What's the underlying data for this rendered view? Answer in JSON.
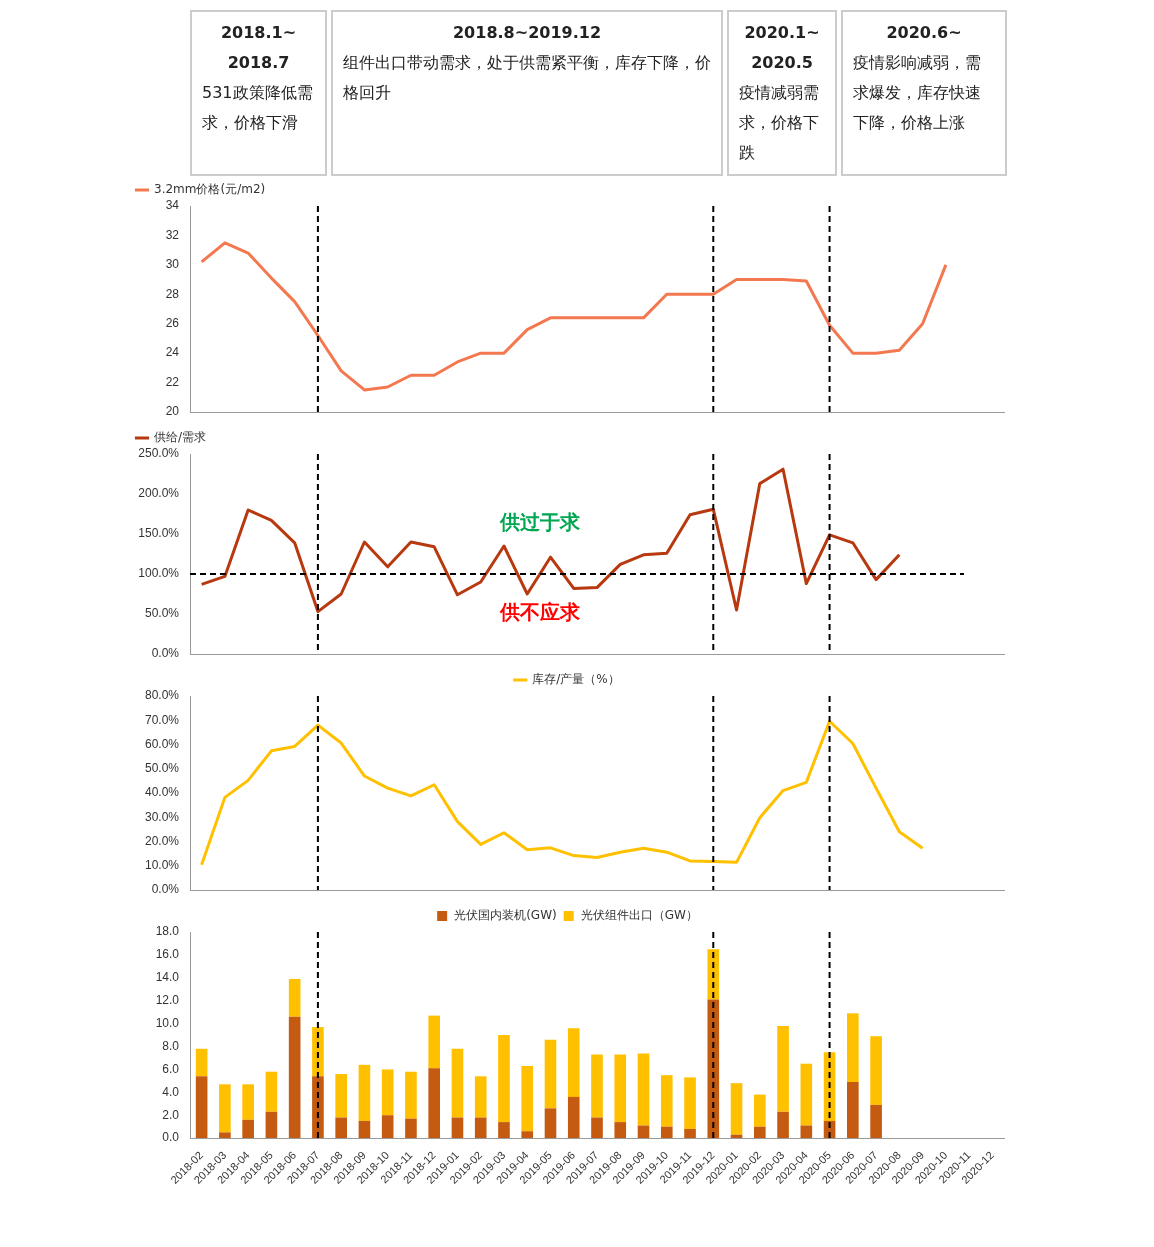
{
  "chart_data": [
    {
      "type": "other",
      "annotations": [
        "2018.1~2018.7",
        "531政策降低需求，价格下滑",
        "2018.8~2019.12",
        "组件出口带动需求，处于供需紧平衡，库存下降，价格回升",
        "2020.1~2020.5",
        "疫情减弱需求，价格下跌",
        "2020.6~",
        "疫情影响减弱，需求爆发，库存快速下降，价格上涨"
      ]
    },
    {
      "type": "line",
      "categories": [
        "2018-02",
        "2018-03",
        "2018-04",
        "2018-05",
        "2018-06",
        "2018-07",
        "2018-08",
        "2018-09",
        "2018-10",
        "2018-11",
        "2018-12",
        "2019-01",
        "2019-02",
        "2019-03",
        "2019-04",
        "2019-05",
        "2019-06",
        "2019-07",
        "2019-08",
        "2019-09",
        "2019-10",
        "2019-11",
        "2019-12",
        "2020-01",
        "2020-02",
        "2020-03",
        "2020-04",
        "2020-05",
        "2020-06",
        "2020-07",
        "2020-08",
        "2020-09",
        "2020-10",
        "2020-11",
        "2020-12"
      ],
      "series": [
        {
          "name": "3.2mm价格(元/m2)",
          "color": "#f4784f",
          "values": [
            30.2,
            31.5,
            30.8,
            29.1,
            27.5,
            25.2,
            22.8,
            21.5,
            21.7,
            22.5,
            22.5,
            23.4,
            24.0,
            24.0,
            25.6,
            26.4,
            26.4,
            26.4,
            26.4,
            26.4,
            28.0,
            28.0,
            28.0,
            29.0,
            29.0,
            29.0,
            28.9,
            25.9,
            24.0,
            24.0,
            24.2,
            26.0,
            30.0,
            null,
            null
          ]
        }
      ],
      "ylim": [
        20,
        34
      ],
      "yticks": [
        20,
        22,
        24,
        26,
        28,
        30,
        32,
        34
      ],
      "tick_labels": "y",
      "legend": "top left",
      "marker": "none",
      "line_style": "solid",
      "ref_lines": [
        {
          "axis": "x",
          "value": "2018-07",
          "line_style": "dashed",
          "color": "#000000"
        },
        {
          "axis": "x",
          "value": "2019-12",
          "line_style": "dashed",
          "color": "#000000"
        },
        {
          "axis": "x",
          "value": "2020-05",
          "line_style": "dashed",
          "color": "#000000"
        }
      ]
    },
    {
      "type": "line",
      "categories": [
        "2018-02",
        "2018-03",
        "2018-04",
        "2018-05",
        "2018-06",
        "2018-07",
        "2018-08",
        "2018-09",
        "2018-10",
        "2018-11",
        "2018-12",
        "2019-01",
        "2019-02",
        "2019-03",
        "2019-04",
        "2019-05",
        "2019-06",
        "2019-07",
        "2019-08",
        "2019-09",
        "2019-10",
        "2019-11",
        "2019-12",
        "2020-01",
        "2020-02",
        "2020-03",
        "2020-04",
        "2020-05",
        "2020-06",
        "2020-07",
        "2020-08",
        "2020-09",
        "2020-10",
        "2020-11",
        "2020-12"
      ],
      "series": [
        {
          "name": "供给/需求",
          "color": "#b8380f",
          "values": [
            87,
            97,
            180,
            167,
            139,
            53,
            75,
            140,
            109,
            140,
            134,
            74,
            90,
            135,
            75,
            121,
            82,
            83,
            112,
            124,
            126,
            174,
            181,
            55,
            213,
            231,
            88,
            149,
            139,
            93,
            124,
            null,
            null,
            null,
            null
          ]
        }
      ],
      "ylim": [
        0,
        250
      ],
      "yticks": [
        {
          "value": 0,
          "label": "0.0%"
        },
        {
          "value": 50,
          "label": "50.0%"
        },
        {
          "value": 100,
          "label": "100.0%"
        },
        {
          "value": 150,
          "label": "150.0%"
        },
        {
          "value": 200,
          "label": "200.0%"
        },
        {
          "value": 250,
          "label": "250.0%"
        }
      ],
      "tick_labels": "y",
      "legend": "top left",
      "marker": "none",
      "line_style": "solid",
      "annotations": [
        "供过于求",
        "供不应求"
      ],
      "ref_lines": [
        {
          "axis": "y",
          "value": 100,
          "line_style": "dashed",
          "color": "#000000"
        },
        {
          "axis": "x",
          "value": "2018-07",
          "line_style": "dashed",
          "color": "#000000"
        },
        {
          "axis": "x",
          "value": "2019-12",
          "line_style": "dashed",
          "color": "#000000"
        },
        {
          "axis": "x",
          "value": "2020-05",
          "line_style": "dashed",
          "color": "#000000"
        }
      ]
    },
    {
      "type": "line",
      "categories": [
        "2018-02",
        "2018-03",
        "2018-04",
        "2018-05",
        "2018-06",
        "2018-07",
        "2018-08",
        "2018-09",
        "2018-10",
        "2018-11",
        "2018-12",
        "2019-01",
        "2019-02",
        "2019-03",
        "2019-04",
        "2019-05",
        "2019-06",
        "2019-07",
        "2019-08",
        "2019-09",
        "2019-10",
        "2019-11",
        "2019-12",
        "2020-01",
        "2020-02",
        "2020-03",
        "2020-04",
        "2020-05",
        "2020-06",
        "2020-07",
        "2020-08",
        "2020-09",
        "2020-10",
        "2020-11",
        "2020-12"
      ],
      "series": [
        {
          "name": "库存/产量（%）",
          "color": "#ffc000",
          "values": [
            10.4,
            38.2,
            45.2,
            57.4,
            59.2,
            68.0,
            60.6,
            47.0,
            42.0,
            38.8,
            43.4,
            28.2,
            18.8,
            23.6,
            16.6,
            17.4,
            14.2,
            13.4,
            15.6,
            17.2,
            15.6,
            12.0,
            11.8,
            11.4,
            29.8,
            41.0,
            44.4,
            69.6,
            60.4,
            42.0,
            24.0,
            17.2,
            null,
            null,
            null
          ]
        }
      ],
      "ylim": [
        0,
        80
      ],
      "yticks": [
        {
          "value": 0,
          "label": "0.0%"
        },
        {
          "value": 10,
          "label": "10.0%"
        },
        {
          "value": 20,
          "label": "20.0%"
        },
        {
          "value": 30,
          "label": "30.0%"
        },
        {
          "value": 40,
          "label": "40.0%"
        },
        {
          "value": 50,
          "label": "50.0%"
        },
        {
          "value": 60,
          "label": "60.0%"
        },
        {
          "value": 70,
          "label": "70.0%"
        },
        {
          "value": 80,
          "label": "80.0%"
        }
      ],
      "tick_labels": "y",
      "legend": "top",
      "marker": "none",
      "line_style": "solid",
      "ref_lines": [
        {
          "axis": "x",
          "value": "2018-07",
          "line_style": "dashed",
          "color": "#000000"
        },
        {
          "axis": "x",
          "value": "2019-12",
          "line_style": "dashed",
          "color": "#000000"
        },
        {
          "axis": "x",
          "value": "2020-05",
          "line_style": "dashed",
          "color": "#000000"
        }
      ]
    },
    {
      "type": "bar",
      "stacked": true,
      "categories": [
        "2018-02",
        "2018-03",
        "2018-04",
        "2018-05",
        "2018-06",
        "2018-07",
        "2018-08",
        "2018-09",
        "2018-10",
        "2018-11",
        "2018-12",
        "2019-01",
        "2019-02",
        "2019-03",
        "2019-04",
        "2019-05",
        "2019-06",
        "2019-07",
        "2019-08",
        "2019-09",
        "2019-10",
        "2019-11",
        "2019-12",
        "2020-01",
        "2020-02",
        "2020-03",
        "2020-04",
        "2020-05",
        "2020-06",
        "2020-07",
        "2020-08",
        "2020-09",
        "2020-10",
        "2020-11",
        "2020-12"
      ],
      "series": [
        {
          "name": "光伏国内装机(GW)",
          "color": "#c55a11",
          "values": [
            5.4,
            0.5,
            1.6,
            2.3,
            10.6,
            5.4,
            1.8,
            1.5,
            2.0,
            1.7,
            6.1,
            1.8,
            1.8,
            1.4,
            0.6,
            2.6,
            3.6,
            1.8,
            1.4,
            1.1,
            1.0,
            0.8,
            12.1,
            0.3,
            1.0,
            2.3,
            1.1,
            1.5,
            4.9,
            2.9,
            null,
            null,
            null,
            null,
            null
          ]
        },
        {
          "name": "光伏组件出口（GW）",
          "color": "#ffc000",
          "values": [
            2.4,
            4.2,
            3.1,
            3.5,
            3.3,
            4.3,
            3.8,
            4.9,
            4.0,
            4.1,
            4.6,
            6.0,
            3.6,
            7.6,
            5.7,
            6.0,
            6.0,
            5.5,
            5.9,
            6.3,
            4.5,
            4.5,
            4.4,
            4.5,
            2.8,
            7.5,
            5.4,
            6.0,
            6.0,
            6.0,
            null,
            null,
            null,
            null,
            null
          ]
        }
      ],
      "ylim": [
        0,
        18
      ],
      "yticks": [
        {
          "value": 0,
          "label": "0.0"
        },
        {
          "value": 2,
          "label": "2.0"
        },
        {
          "value": 4,
          "label": "4.0"
        },
        {
          "value": 6,
          "label": "6.0"
        },
        {
          "value": 8,
          "label": "8.0"
        },
        {
          "value": 10,
          "label": "10.0"
        },
        {
          "value": 12,
          "label": "12.0"
        },
        {
          "value": 14,
          "label": "14.0"
        },
        {
          "value": 16,
          "label": "16.0"
        },
        {
          "value": 18,
          "label": "18.0"
        }
      ],
      "legend": "top",
      "ref_lines": [
        {
          "axis": "x",
          "value": "2018-07",
          "line_style": "dashed",
          "color": "#000000"
        },
        {
          "axis": "x",
          "value": "2019-12",
          "line_style": "dashed",
          "color": "#000000"
        },
        {
          "axis": "x",
          "value": "2020-05",
          "line_style": "dashed",
          "color": "#000000"
        }
      ]
    }
  ]
}
